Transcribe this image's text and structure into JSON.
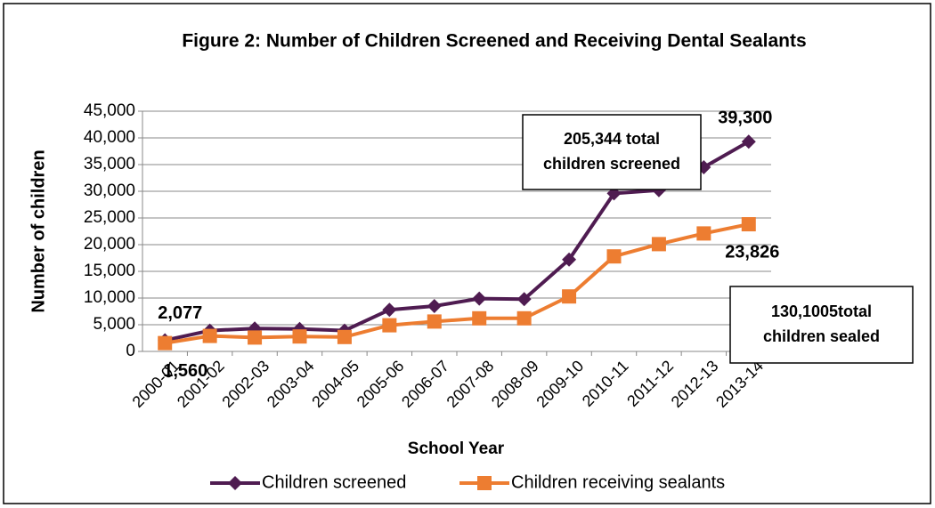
{
  "chart_data": {
    "type": "line",
    "title": "Figure 2: Number of Children Screened and Receiving Dental Sealants",
    "x_label": "School Year",
    "y_label": "Number of children",
    "categories": [
      "2000-01",
      "2001-02",
      "2002-03",
      "2003-04",
      "2004-05",
      "2005-06",
      "2006-07",
      "2007-08",
      "2008-09",
      "2009-10",
      "2010-11",
      "2011-12",
      "2012-13",
      "2013-14"
    ],
    "series": [
      {
        "name": "Children screened",
        "color": "#4f1c51",
        "marker": "diamond",
        "values": [
          2077,
          3900,
          4300,
          4200,
          3900,
          7800,
          8500,
          9900,
          9800,
          17200,
          29600,
          30200,
          34500,
          39300
        ],
        "value_labels": [
          "2,077",
          null,
          null,
          null,
          null,
          null,
          null,
          null,
          null,
          null,
          null,
          null,
          null,
          "39,300"
        ]
      },
      {
        "name": "Children receiving sealants",
        "color": "#ed7d31",
        "marker": "square",
        "values": [
          1560,
          2900,
          2600,
          2800,
          2700,
          4900,
          5600,
          6200,
          6200,
          10300,
          17800,
          20100,
          22100,
          23826
        ],
        "value_labels": [
          "1,560",
          null,
          null,
          null,
          null,
          null,
          null,
          null,
          null,
          null,
          null,
          null,
          null,
          "23,826"
        ]
      }
    ],
    "ylim": [
      0,
      45000
    ],
    "yticks": [
      0,
      {
        "value": 5000,
        "label": "5,000"
      },
      {
        "value": 10000,
        "label": "10,000"
      },
      {
        "value": 15000,
        "label": "15,000"
      },
      {
        "value": 20000,
        "label": "20,000"
      },
      {
        "value": 25000,
        "label": "25,000"
      },
      {
        "value": 30000,
        "label": "30,000"
      },
      {
        "value": 35000,
        "label": "35,000"
      },
      {
        "value": 40000,
        "label": "40,000"
      },
      {
        "value": 45000,
        "label": "45,000"
      }
    ],
    "grid": true,
    "legend": "bottom",
    "annotations": [
      {
        "lines": [
          "205,344 total",
          "children screened"
        ]
      },
      {
        "lines": [
          "130,1005total",
          "children sealed"
        ]
      }
    ]
  }
}
